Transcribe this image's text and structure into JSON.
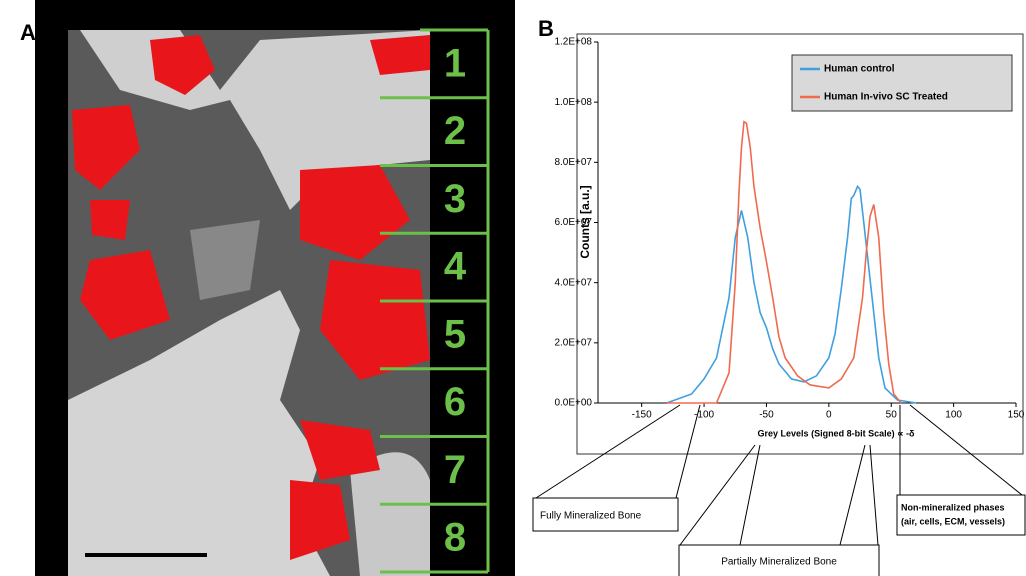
{
  "panel_a": {
    "label": "A",
    "sections": [
      "1",
      "2",
      "3",
      "4",
      "5",
      "6",
      "7",
      "8"
    ]
  },
  "chart_data": {
    "type": "line",
    "panel_label": "B",
    "ylabel": "Counts [a.u.]",
    "xlabel": "Grey Levels (Signed 8-bit Scale) ∝ -δ",
    "xlim": [
      -185,
      150
    ],
    "xticks": [
      -150,
      -100,
      -50,
      0,
      50,
      100,
      150
    ],
    "ylim": [
      0,
      120000000
    ],
    "yticks": [
      {
        "value": 0,
        "label": "0.0E+00"
      },
      {
        "value": 20000000,
        "label": "2.0E+07"
      },
      {
        "value": 40000000,
        "label": "4.0E+07"
      },
      {
        "value": 60000000,
        "label": "6.0E+07"
      },
      {
        "value": 80000000,
        "label": "8.0E+07"
      },
      {
        "value": 100000000,
        "label": "1.0E+08"
      },
      {
        "value": 120000000,
        "label": "1.2E+08"
      }
    ],
    "legend": "upper right",
    "series": [
      {
        "name": "Human control",
        "color": "#3fa0e0",
        "x": [
          -130,
          -110,
          -100,
          -90,
          -80,
          -75,
          -70,
          -65,
          -60,
          -55,
          -50,
          -45,
          -40,
          -30,
          -20,
          -10,
          0,
          5,
          10,
          15,
          18,
          20,
          23,
          25,
          28,
          32,
          36,
          40,
          45,
          55,
          70
        ],
        "values": [
          0,
          3000000,
          8000000,
          15000000,
          35000000,
          55000000,
          64000000,
          55000000,
          40000000,
          30000000,
          25000000,
          18000000,
          13000000,
          8000000,
          7000000,
          9000000,
          15000000,
          23000000,
          38000000,
          55000000,
          68000000,
          69000000,
          72000000,
          71000000,
          60000000,
          45000000,
          30000000,
          15000000,
          5000000,
          1000000,
          0
        ]
      },
      {
        "name": "Human In-vivo SC Treated",
        "color": "#f06a50",
        "x": [
          -130,
          -90,
          -80,
          -75,
          -72,
          -70,
          -68,
          -66,
          -63,
          -60,
          -55,
          -50,
          -45,
          -40,
          -35,
          -25,
          -15,
          0,
          10,
          20,
          27,
          30,
          33,
          36,
          40,
          44,
          48,
          52,
          58
        ],
        "values": [
          0,
          0,
          10000000,
          40000000,
          70000000,
          85000000,
          93500000,
          93000000,
          85000000,
          72000000,
          58000000,
          47000000,
          35000000,
          22000000,
          15000000,
          9000000,
          6000000,
          5000000,
          8000000,
          15000000,
          35000000,
          50000000,
          62000000,
          66000000,
          55000000,
          30000000,
          13000000,
          3000000,
          0
        ]
      }
    ],
    "annotations": [
      "Fully Mineralized Bone",
      "Partially Mineralized Bone",
      "Non-mineralized phases",
      "(air, cells, ECM, vessels)"
    ]
  }
}
